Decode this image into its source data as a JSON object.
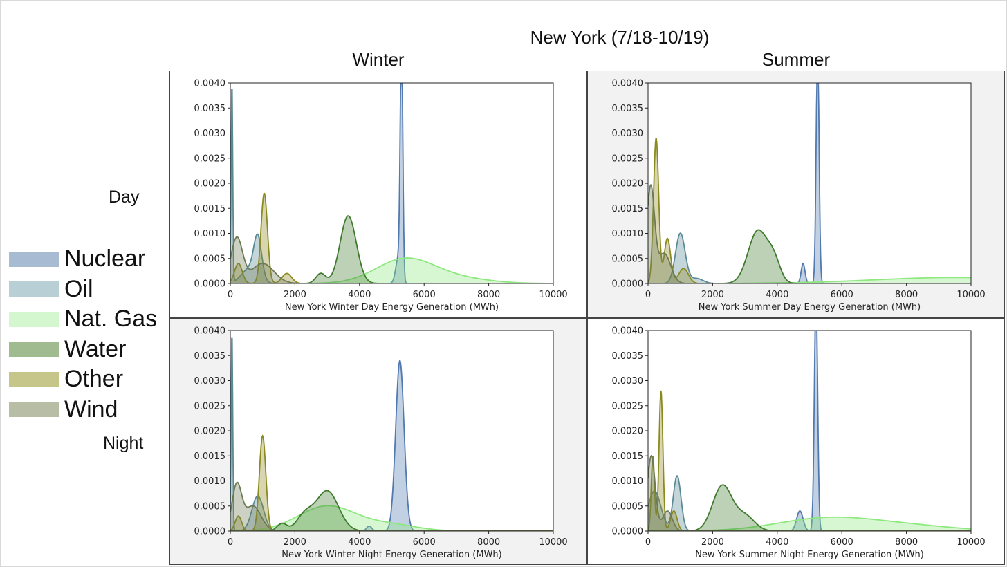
{
  "figure": {
    "title": "New York (7/18-10/19)",
    "col_titles": [
      "Winter",
      "Summer"
    ],
    "row_titles": [
      "Day",
      "Night"
    ],
    "legend": [
      {
        "label": "Nuclear",
        "color": "#a7bcd3"
      },
      {
        "label": "Oil",
        "color": "#b8cfd6"
      },
      {
        "label": "Nat. Gas",
        "color": "#d4f7cf"
      },
      {
        "label": "Water",
        "color": "#9fbb8f"
      },
      {
        "label": "Other",
        "color": "#c6c58a"
      },
      {
        "label": "Wind",
        "color": "#b8bea5"
      }
    ],
    "colors": {
      "Nuclear": "#5179ae",
      "Oil": "#5a8a96",
      "Nat. Gas": "#8de87e",
      "Water": "#3f7a2e",
      "Other": "#8b8a1f",
      "Wind": "#6e7a55"
    }
  },
  "chart_data": [
    {
      "type": "area",
      "xlabel": "New York Winter Day Energy Generation (MWh)",
      "xlim": [
        0,
        10000
      ],
      "ylim": [
        0,
        0.004
      ],
      "xticks": [
        "0",
        "2000",
        "4000",
        "6000",
        "8000",
        "10000"
      ],
      "yticks": [
        "0.0000",
        "0.0005",
        "0.0010",
        "0.0015",
        "0.0020",
        "0.0025",
        "0.0030",
        "0.0035",
        "0.0040"
      ],
      "series": [
        {
          "name": "Nuclear",
          "peaks": [
            [
              5300,
              0.0048,
              40
            ],
            [
              5200,
              0.0005,
              80
            ]
          ]
        },
        {
          "name": "Oil",
          "peaks": [
            [
              50,
              0.004,
              25
            ],
            [
              850,
              0.0008,
              120
            ],
            [
              600,
              0.0003,
              250
            ]
          ]
        },
        {
          "name": "Nat. Gas",
          "peaks": [
            [
              5400,
              0.00048,
              900
            ],
            [
              7000,
              0.0001,
              1000
            ]
          ]
        },
        {
          "name": "Water",
          "peaks": [
            [
              3650,
              0.00135,
              250
            ],
            [
              2800,
              0.0002,
              150
            ]
          ]
        },
        {
          "name": "Other",
          "peaks": [
            [
              1050,
              0.0018,
              100
            ],
            [
              250,
              0.0004,
              120
            ],
            [
              1750,
              0.0002,
              150
            ]
          ]
        },
        {
          "name": "Wind",
          "peaks": [
            [
              200,
              0.0009,
              180
            ],
            [
              1000,
              0.0004,
              350
            ]
          ]
        }
      ]
    },
    {
      "type": "area",
      "xlabel": "New York Summer Day Energy Generation (MWh)",
      "xlim": [
        0,
        10000
      ],
      "ylim": [
        0,
        0.004
      ],
      "xticks": [
        "0",
        "2000",
        "4000",
        "6000",
        "8000",
        "10000"
      ],
      "yticks": [
        "0.0000",
        "0.0005",
        "0.0010",
        "0.0015",
        "0.0020",
        "0.0025",
        "0.0030",
        "0.0035",
        "0.0040"
      ],
      "series": [
        {
          "name": "Nuclear",
          "peaks": [
            [
              5250,
              0.0048,
              45
            ],
            [
              4800,
              0.0004,
              60
            ]
          ]
        },
        {
          "name": "Oil",
          "peaks": [
            [
              1000,
              0.001,
              150
            ],
            [
              1500,
              0.0001,
              200
            ]
          ]
        },
        {
          "name": "Nat. Gas",
          "peaks": [
            [
              9500,
              0.00012,
              2500
            ]
          ]
        },
        {
          "name": "Water",
          "peaks": [
            [
              3400,
              0.00105,
              300
            ],
            [
              3900,
              0.0004,
              200
            ]
          ]
        },
        {
          "name": "Other",
          "peaks": [
            [
              250,
              0.0029,
              80
            ],
            [
              600,
              0.0009,
              100
            ],
            [
              1100,
              0.0003,
              150
            ]
          ]
        },
        {
          "name": "Wind",
          "peaks": [
            [
              80,
              0.0019,
              120
            ],
            [
              500,
              0.0006,
              200
            ]
          ]
        }
      ]
    },
    {
      "type": "area",
      "xlabel": "New York Winter Night Energy Generation (MWh)",
      "xlim": [
        0,
        10000
      ],
      "ylim": [
        0,
        0.004
      ],
      "xticks": [
        "0",
        "2000",
        "4000",
        "6000",
        "8000",
        "10000"
      ],
      "yticks": [
        "0.0000",
        "0.0005",
        "0.0010",
        "0.0015",
        "0.0020",
        "0.0025",
        "0.0030",
        "0.0035",
        "0.0040"
      ],
      "series": [
        {
          "name": "Nuclear",
          "peaks": [
            [
              5250,
              0.0034,
              130
            ],
            [
              4300,
              0.0001,
              80
            ]
          ]
        },
        {
          "name": "Oil",
          "peaks": [
            [
              50,
              0.004,
              25
            ],
            [
              850,
              0.0007,
              180
            ]
          ]
        },
        {
          "name": "Nat. Gas",
          "peaks": [
            [
              3000,
              0.0005,
              900
            ],
            [
              5000,
              0.00012,
              800
            ]
          ]
        },
        {
          "name": "Water",
          "peaks": [
            [
              3000,
              0.0008,
              350
            ],
            [
              2300,
              0.0003,
              250
            ],
            [
              1600,
              0.00015,
              150
            ]
          ]
        },
        {
          "name": "Other",
          "peaks": [
            [
              1000,
              0.0019,
              100
            ],
            [
              250,
              0.0003,
              100
            ]
          ]
        },
        {
          "name": "Wind",
          "peaks": [
            [
              200,
              0.0009,
              150
            ],
            [
              700,
              0.0005,
              250
            ]
          ]
        }
      ]
    },
    {
      "type": "area",
      "xlabel": "New York Summer Night Energy Generation (MWh)",
      "xlim": [
        0,
        10000
      ],
      "ylim": [
        0,
        0.004
      ],
      "xticks": [
        "0",
        "2000",
        "4000",
        "6000",
        "8000",
        "10000"
      ],
      "yticks": [
        "0.0000",
        "0.0005",
        "0.0010",
        "0.0015",
        "0.0020",
        "0.0025",
        "0.0030",
        "0.0035",
        "0.0040"
      ],
      "series": [
        {
          "name": "Nuclear",
          "peaks": [
            [
              5200,
              0.0048,
              50
            ],
            [
              4700,
              0.0004,
              100
            ]
          ]
        },
        {
          "name": "Oil",
          "peaks": [
            [
              900,
              0.0011,
              120
            ],
            [
              200,
              0.0008,
              200
            ]
          ]
        },
        {
          "name": "Nat. Gas",
          "peaks": [
            [
              5500,
              0.00025,
              1500
            ],
            [
              8000,
              0.0001,
              1500
            ]
          ]
        },
        {
          "name": "Water",
          "peaks": [
            [
              2300,
              0.0009,
              300
            ],
            [
              3000,
              0.0003,
              300
            ]
          ]
        },
        {
          "name": "Other",
          "peaks": [
            [
              400,
              0.0028,
              60
            ],
            [
              150,
              0.0015,
              50
            ],
            [
              800,
              0.0004,
              100
            ]
          ]
        },
        {
          "name": "Wind",
          "peaks": [
            [
              100,
              0.0015,
              120
            ],
            [
              600,
              0.0004,
              150
            ]
          ]
        }
      ]
    }
  ]
}
